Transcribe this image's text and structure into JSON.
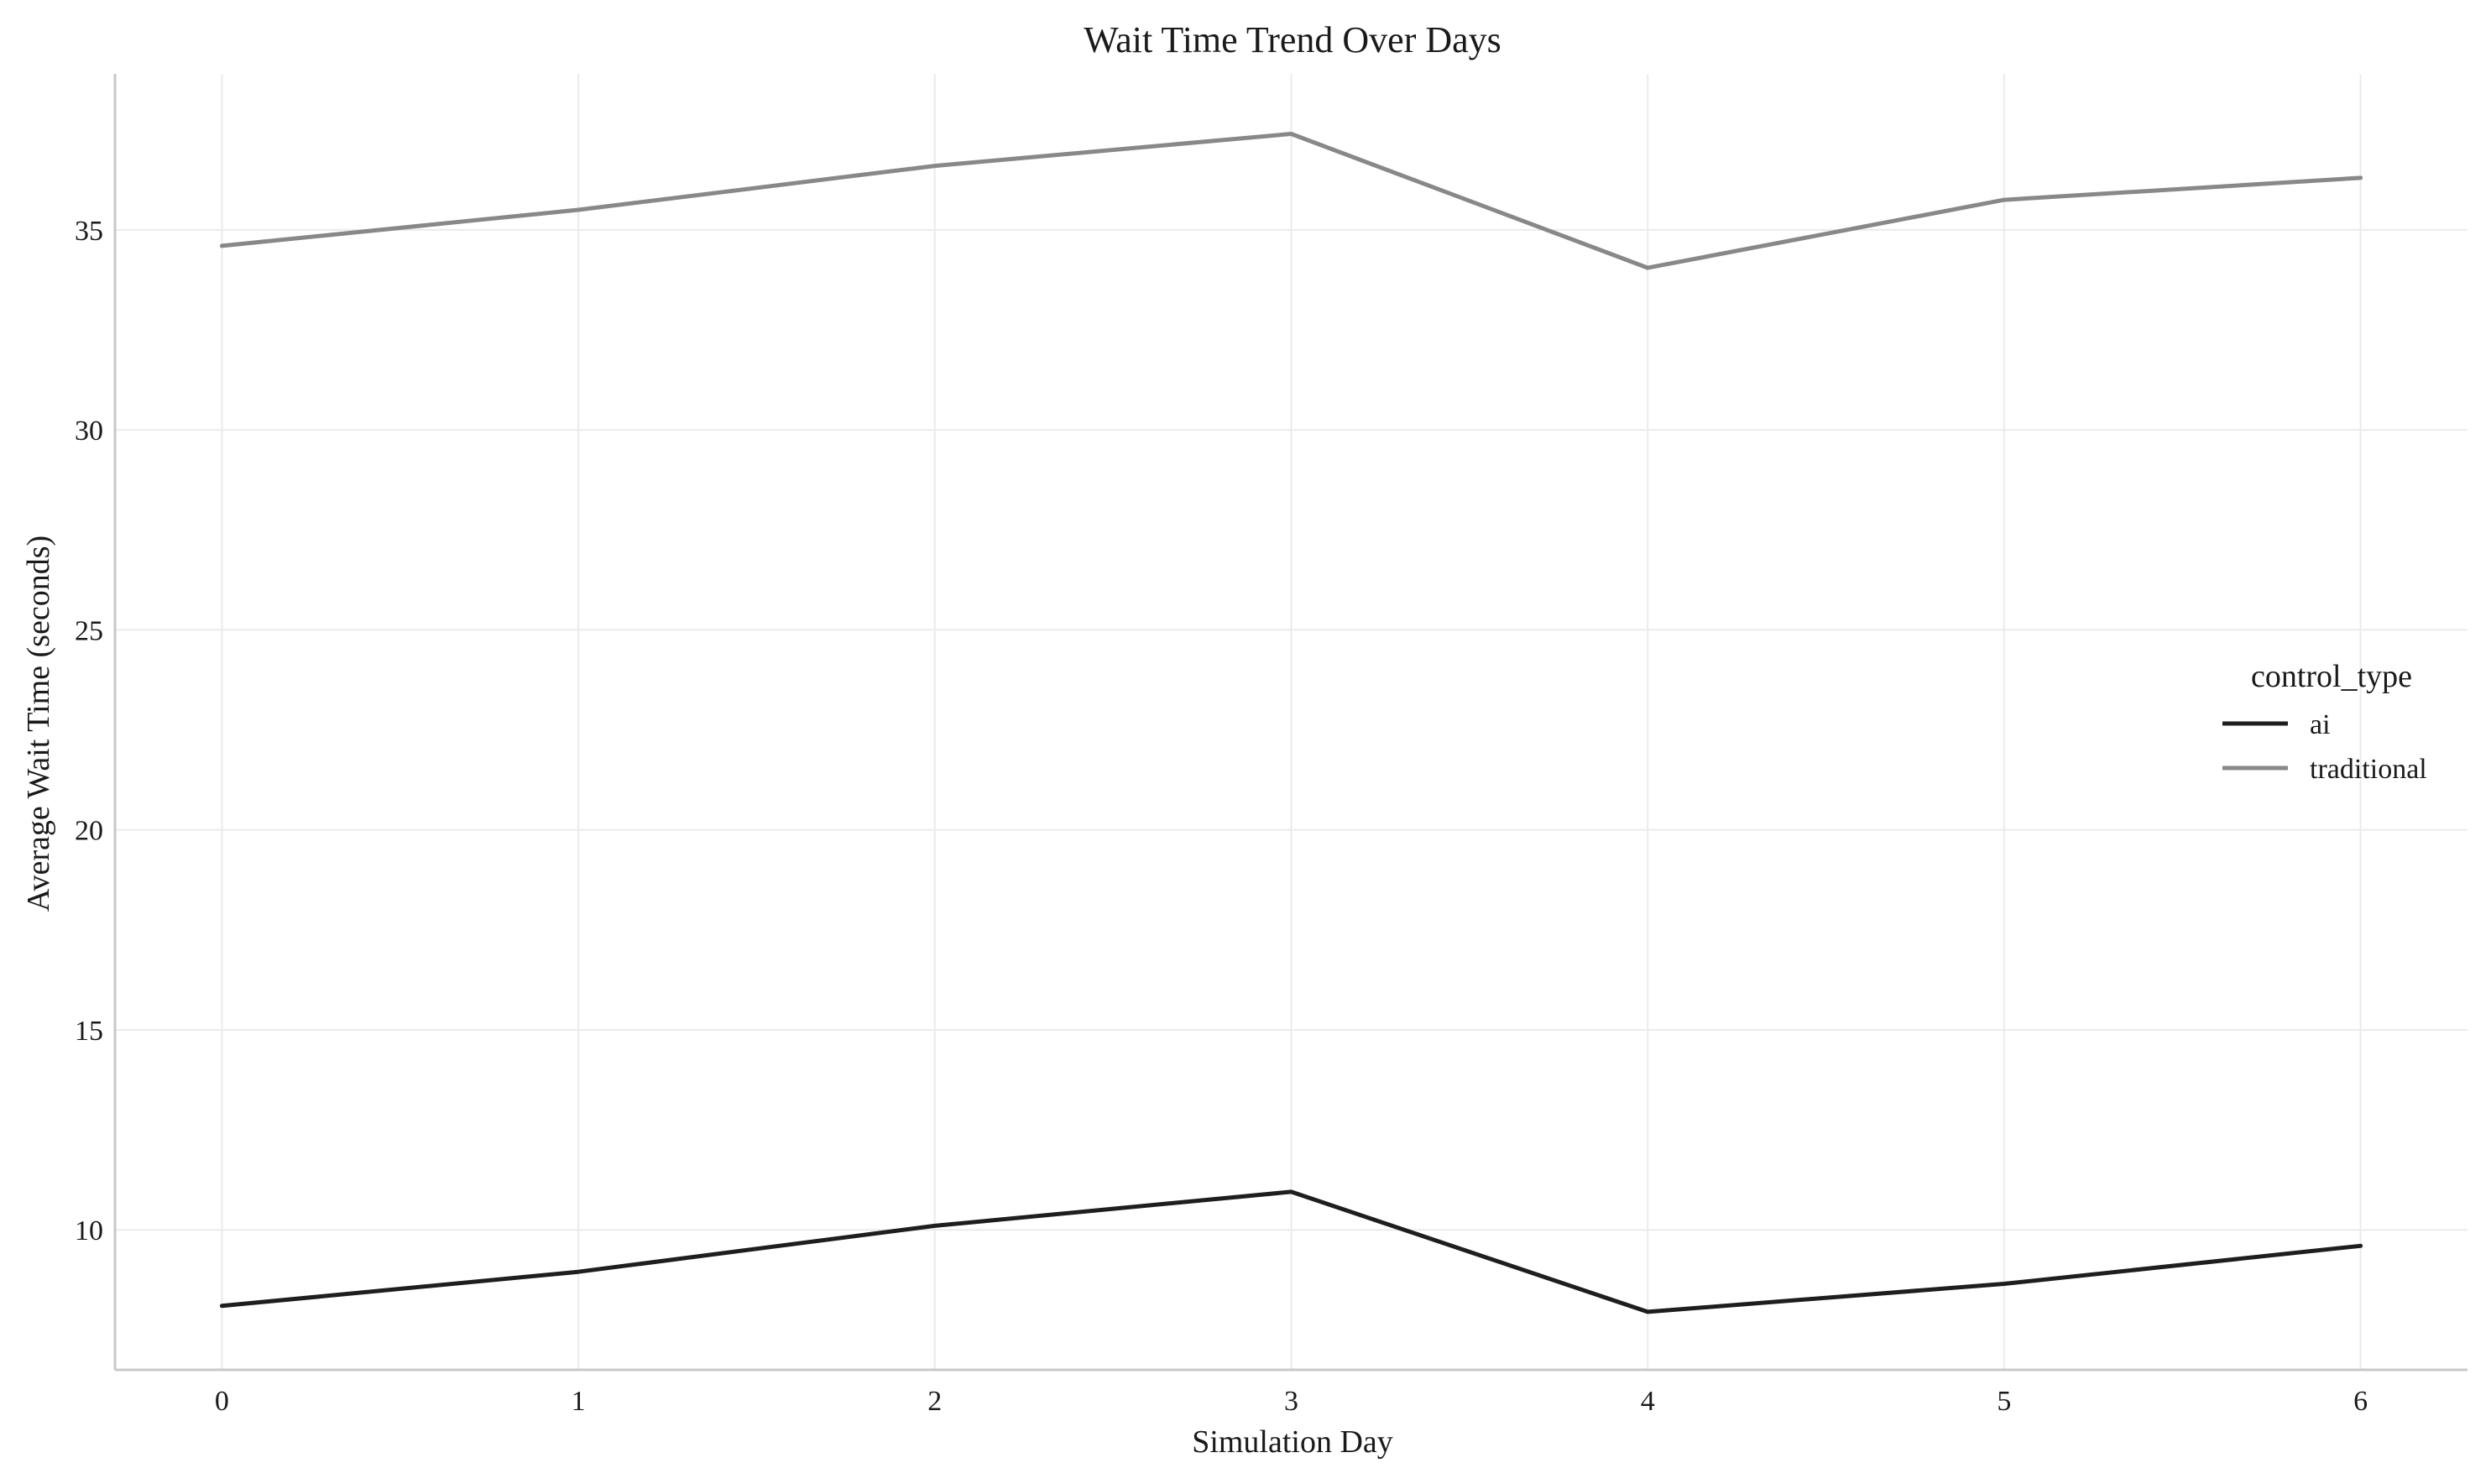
{
  "chart_data": {
    "type": "line",
    "title": "Wait Time Trend Over Days",
    "xlabel": "Simulation Day",
    "ylabel": "Average Wait Time (seconds)",
    "x": [
      0,
      1,
      2,
      3,
      4,
      5,
      6
    ],
    "xticks": [
      "0",
      "1",
      "2",
      "3",
      "4",
      "5",
      "6"
    ],
    "yticks": [
      "10",
      "15",
      "20",
      "25",
      "30",
      "35"
    ],
    "xlim": [
      -0.3,
      6.3
    ],
    "ylim": [
      6.5,
      38.9
    ],
    "grid": true,
    "legend": {
      "title": "control_type",
      "placement": "right"
    },
    "series": [
      {
        "name": "ai",
        "color": "#1e1e1e",
        "values": [
          8.1,
          8.95,
          10.1,
          10.95,
          7.95,
          8.65,
          9.6
        ]
      },
      {
        "name": "traditional",
        "color": "#888888",
        "values": [
          34.6,
          35.5,
          36.6,
          37.4,
          34.05,
          35.75,
          36.3
        ]
      }
    ]
  }
}
